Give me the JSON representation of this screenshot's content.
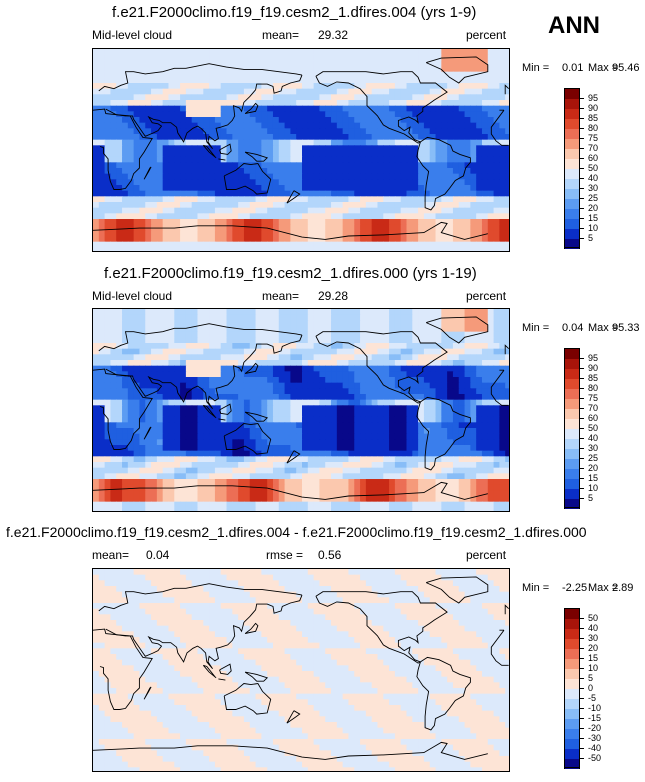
{
  "season": "ANN",
  "colors": {
    "sequential": [
      "#08088a",
      "#0a2ec8",
      "#1f5fe0",
      "#3a7eec",
      "#5c9cf2",
      "#88bdf7",
      "#b3d6fb",
      "#dce9fb",
      "#fde4d6",
      "#fbc8ae",
      "#f59a7a",
      "#ec6e55",
      "#e04a2d",
      "#c92a16",
      "#a9140a",
      "#7a0000"
    ],
    "diverging": [
      "#08088a",
      "#0a2ec8",
      "#1f5fe0",
      "#3a7eec",
      "#5c9cf2",
      "#88bdf7",
      "#b3d6fb",
      "#dce9fb",
      "#fde4d6",
      "#fbc8ae",
      "#f59a7a",
      "#ec6e55",
      "#e04a2d",
      "#c92a16",
      "#a9140a",
      "#7a0000"
    ]
  },
  "chart_data": [
    {
      "type": "heatmap",
      "title": "f.e21.F2000climo.f19_f19.cesm2_1.dfires.004 (yrs 1-9)",
      "variable": "Mid-level cloud",
      "mean_label": "mean=",
      "mean": "29.32",
      "units": "percent",
      "min_label": "Min =",
      "min": "0.01",
      "max_label": "Max =",
      "max": "95.46",
      "colorbar_levels": [
        "5",
        "10",
        "15",
        "20",
        "25",
        "30",
        "40",
        "50",
        "60",
        "70",
        "75",
        "80",
        "85",
        "90",
        "95"
      ],
      "palette": "sequential",
      "field": "cloud"
    },
    {
      "type": "heatmap",
      "title": "f.e21.F2000climo.f19_f19.cesm2_1.dfires.000 (yrs 1-19)",
      "variable": "Mid-level cloud",
      "mean_label": "mean=",
      "mean": "29.28",
      "units": "percent",
      "min_label": "Min =",
      "min": "0.04",
      "max_label": "Max =",
      "max": "95.33",
      "colorbar_levels": [
        "5",
        "10",
        "15",
        "20",
        "25",
        "30",
        "40",
        "50",
        "60",
        "70",
        "75",
        "80",
        "85",
        "90",
        "95"
      ],
      "palette": "sequential",
      "field": "cloud"
    },
    {
      "type": "heatmap",
      "title": "f.e21.F2000climo.f19_f19.cesm2_1.dfires.004 - f.e21.F2000climo.f19_f19.cesm2_1.dfires.000",
      "variable": "",
      "mean_label": "mean=",
      "mean": "0.04",
      "rmse_label": "rmse =",
      "rmse": "0.56",
      "units": "percent",
      "min_label": "Min =",
      "min": "-2.25",
      "max_label": "Max =",
      "max": "2.89",
      "colorbar_levels": [
        "-50",
        "-40",
        "-30",
        "-20",
        "-15",
        "-10",
        "-5",
        "0",
        "5",
        "10",
        "15",
        "20",
        "30",
        "40",
        "50"
      ],
      "palette": "diverging",
      "field": "diff"
    }
  ]
}
